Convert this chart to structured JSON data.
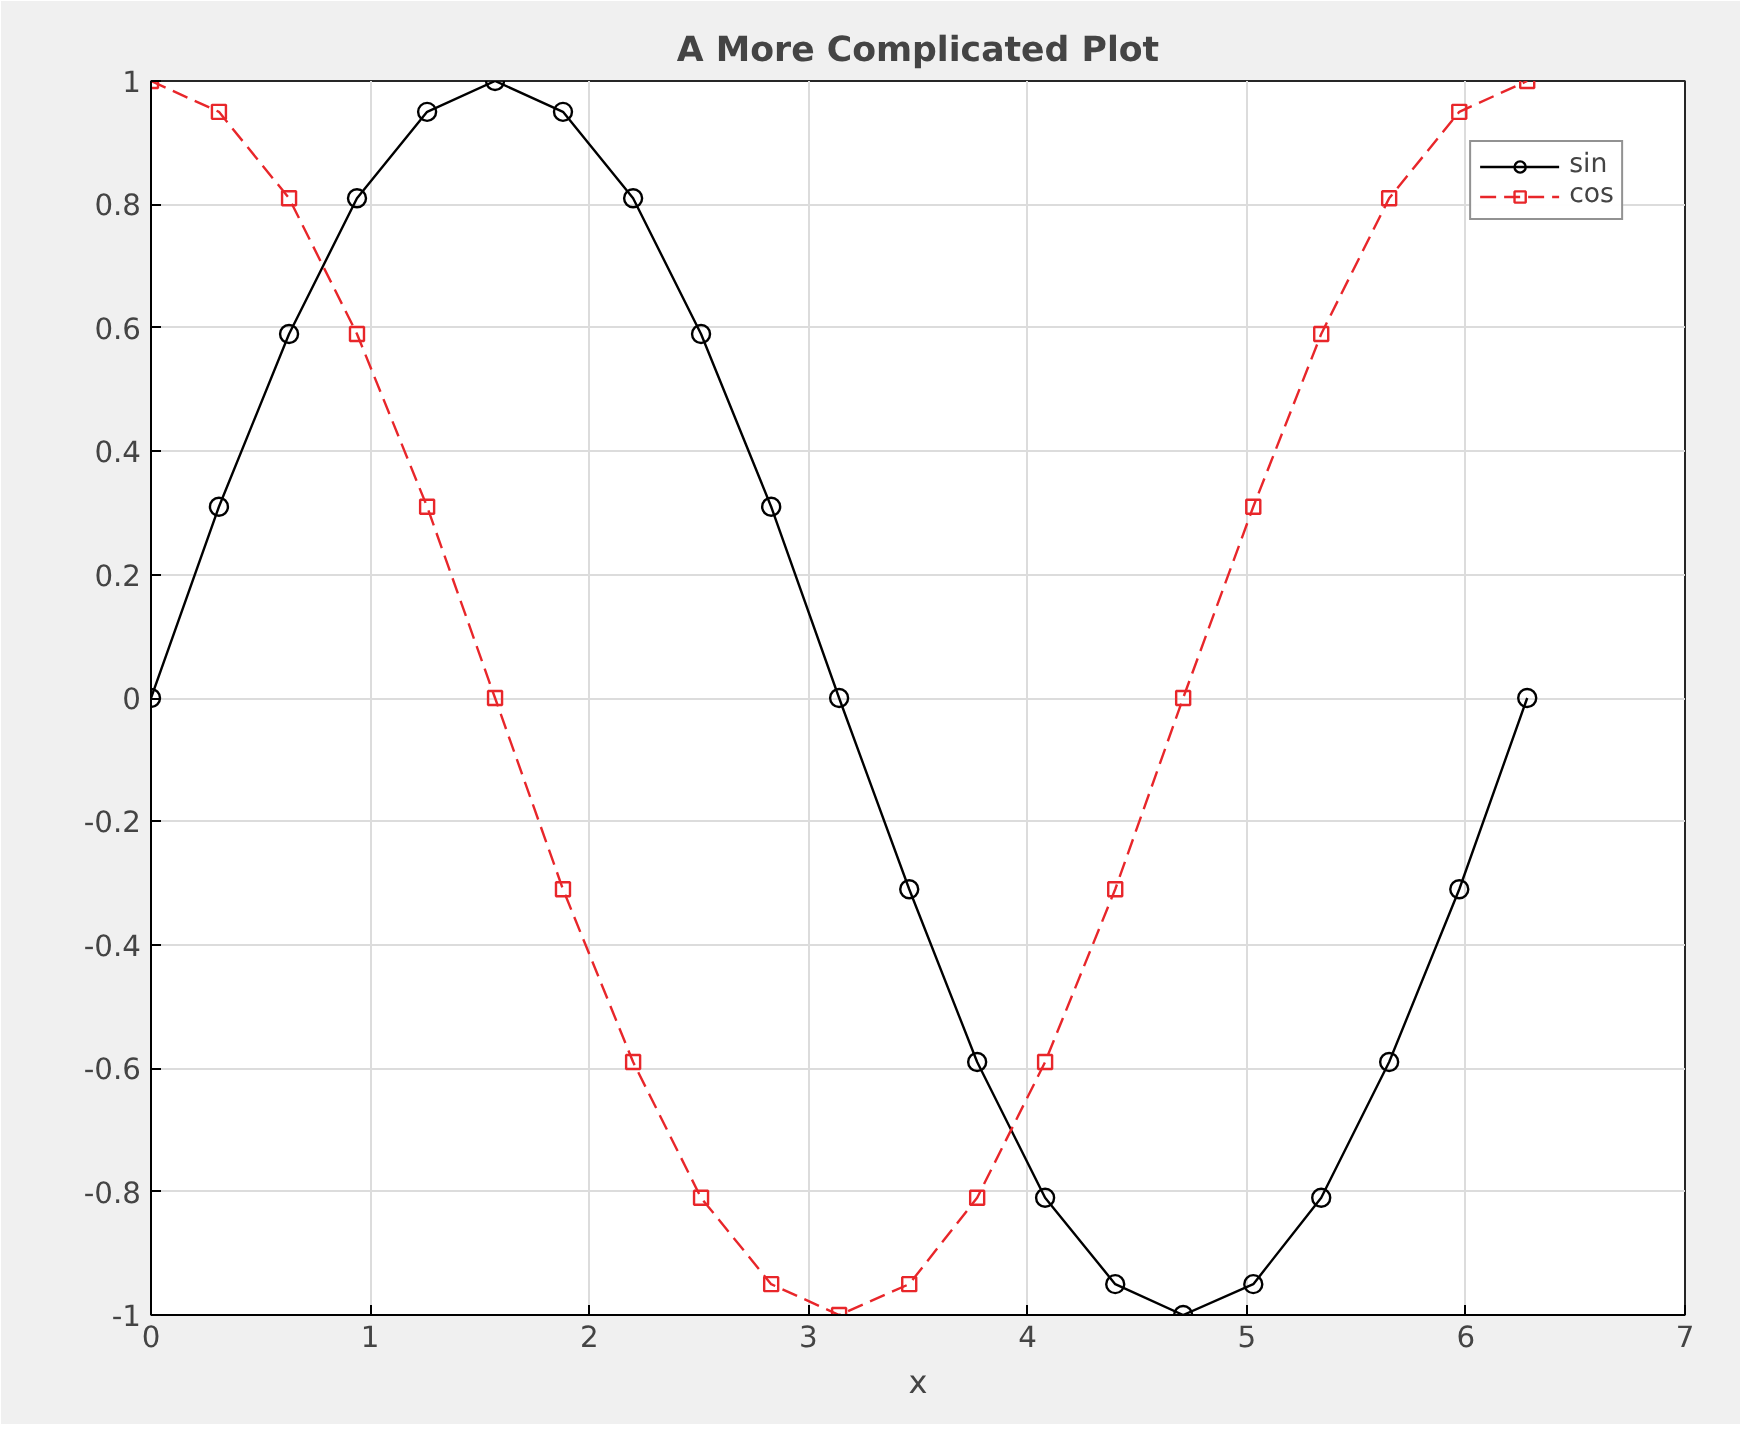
{
  "chart_data": {
    "type": "line",
    "title": "A More Complicated Plot",
    "xlabel": "x",
    "x": [
      0,
      0.31,
      0.63,
      0.94,
      1.26,
      1.57,
      1.88,
      2.2,
      2.51,
      2.83,
      3.14,
      3.46,
      3.77,
      4.08,
      4.4,
      4.71,
      5.03,
      5.34,
      5.65,
      5.97,
      6.28
    ],
    "series": [
      {
        "name": "sin",
        "color": "#000000",
        "marker": "circle",
        "line_style": "solid",
        "values": [
          0,
          0.31,
          0.59,
          0.81,
          0.95,
          1,
          0.95,
          0.81,
          0.59,
          0.31,
          0,
          -0.31,
          -0.59,
          -0.81,
          -0.95,
          -1,
          -0.95,
          -0.81,
          -0.59,
          -0.31,
          0
        ]
      },
      {
        "name": "cos",
        "color": "#e8262a",
        "marker": "square",
        "line_style": "dashed",
        "values": [
          1,
          0.95,
          0.81,
          0.59,
          0.31,
          0,
          -0.31,
          -0.59,
          -0.81,
          -0.95,
          -1,
          -0.95,
          -0.81,
          -0.59,
          -0.31,
          0,
          0.31,
          0.59,
          0.81,
          0.95,
          1
        ]
      }
    ],
    "xlim": [
      0,
      7
    ],
    "xticks": [
      0,
      1,
      2,
      3,
      4,
      5,
      6,
      7
    ],
    "ylim": [
      -1,
      1
    ],
    "yticks": [
      -1,
      -0.8,
      -0.6,
      -0.4,
      -0.2,
      0,
      0.2,
      0.4,
      0.6,
      0.8,
      1
    ],
    "grid": true,
    "legend": "top right"
  }
}
